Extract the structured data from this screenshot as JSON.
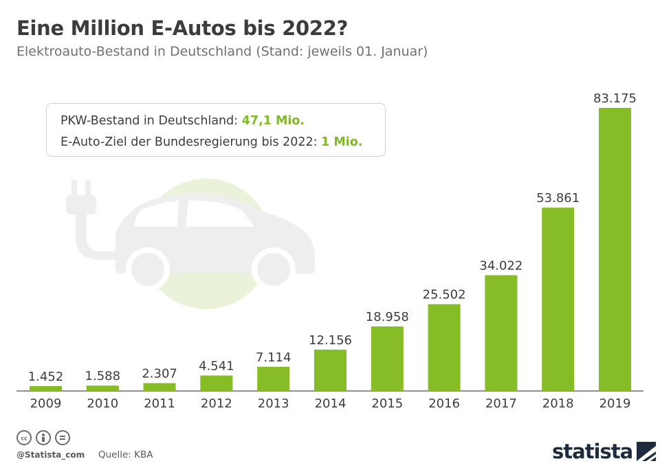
{
  "header": {
    "title": "Eine Million E-Autos bis 2022?",
    "subtitle": "Elektroauto-Bestand in Deutschland (Stand: jeweils 01. Januar)"
  },
  "infobox": {
    "line1_label": "PKW-Bestand in Deutschland: ",
    "line1_value": "47,1 Mio.",
    "line2_label": "E-Auto-Ziel der Bundesregierung bis 2022: ",
    "line2_value": "1 Mio."
  },
  "colors": {
    "bar": "#86bc25",
    "highlight": "#7fb82a",
    "illustration_circle": "#eaf3d9",
    "illustration_car": "#eeeeee",
    "brand": "#1d2b3c"
  },
  "icons": [
    "plug-icon",
    "car-icon",
    "cc-icon",
    "attribution-icon",
    "no-derivatives-icon",
    "statista-logo-icon"
  ],
  "chart_data": {
    "type": "bar",
    "categories": [
      "2009",
      "2010",
      "2011",
      "2012",
      "2013",
      "2014",
      "2015",
      "2016",
      "2017",
      "2018",
      "2019"
    ],
    "values": [
      1452,
      1588,
      2307,
      4541,
      7114,
      12156,
      18958,
      25502,
      34022,
      53861,
      83175
    ],
    "value_labels": [
      "1.452",
      "1.588",
      "2.307",
      "4.541",
      "7.114",
      "12.156",
      "18.958",
      "25.502",
      "34.022",
      "53.861",
      "83.175"
    ],
    "title": "Eine Million E-Autos bis 2022?",
    "xlabel": "",
    "ylabel": "",
    "ylim": [
      0,
      83175
    ],
    "grid": false,
    "legend": "none"
  },
  "footer": {
    "handle": "@Statista_com",
    "source": "Quelle: KBA",
    "brand": "statista"
  }
}
